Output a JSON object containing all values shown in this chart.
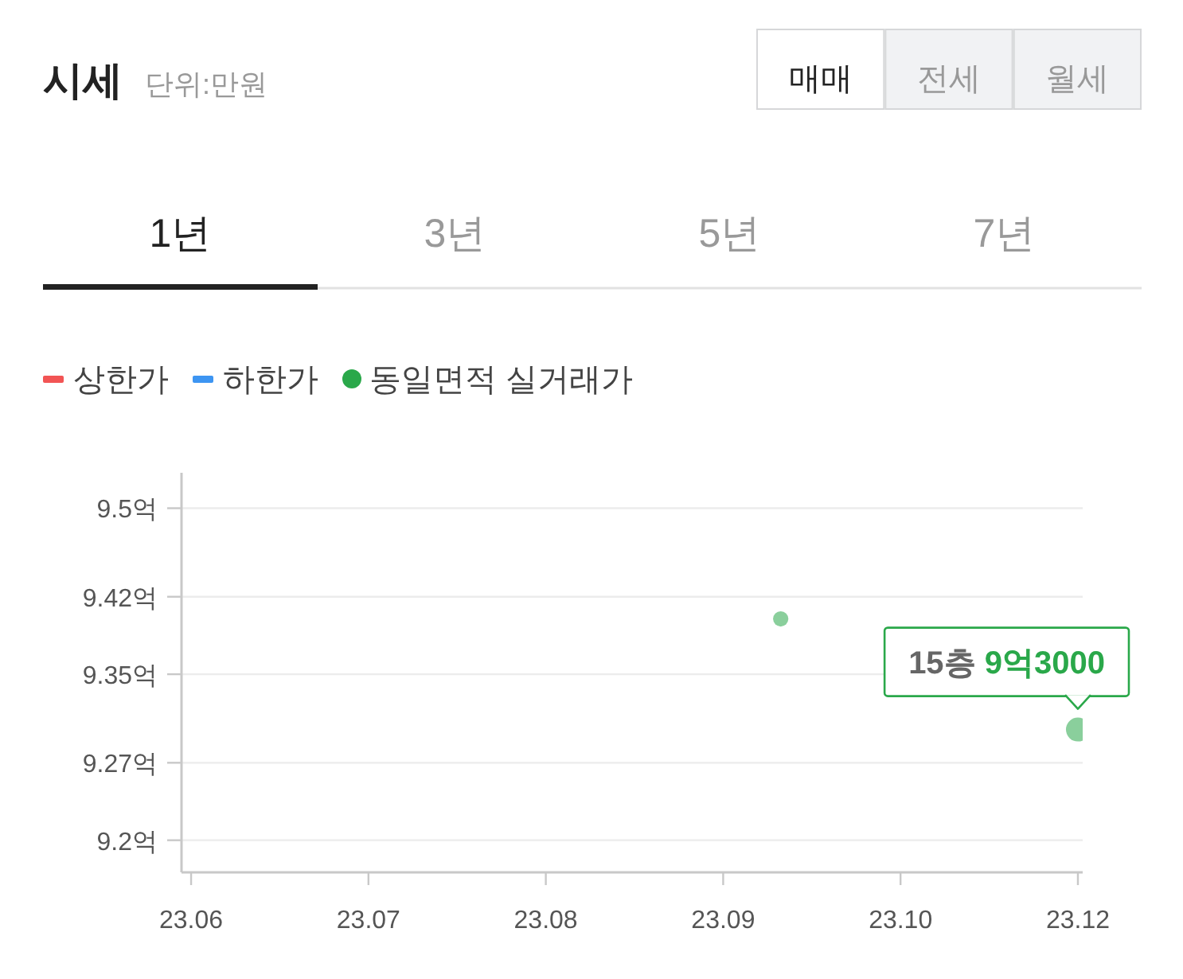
{
  "chart_data": {
    "type": "scatter",
    "title": "시세",
    "subtitle": "단위:만원",
    "annotations": [
      "매매",
      "전세",
      "월세",
      "1년",
      "3년",
      "5년",
      "7년",
      {
        "text": "15층 9억3000",
        "x": "--12-03",
        "y": 9.3
      }
    ],
    "x": [
      "--10-02",
      "--12-03"
    ],
    "series": [
      {
        "name": "상한가",
        "type": "line",
        "color": "#f25454",
        "values": [
          null,
          null
        ]
      },
      {
        "name": "하한가",
        "type": "line",
        "color": "#3d95f2",
        "values": [
          null,
          null
        ]
      },
      {
        "name": "동일면적 실거래가",
        "color": "#2aa84a",
        "values": [
          9.4,
          9.3
        ]
      }
    ],
    "xlim": [
      "--05-30",
      "--12-04"
    ],
    "xticks": [
      {
        "value": "--06-01",
        "label": "23.06"
      },
      {
        "value": "--07-08",
        "label": "23.07"
      },
      {
        "value": "--08-14",
        "label": "23.08"
      },
      {
        "value": "--09-20",
        "label": "23.09"
      },
      {
        "value": "--10-27",
        "label": "23.10"
      },
      {
        "value": "--12-03",
        "label": "23.12"
      }
    ],
    "ylim": [
      9.171,
      9.532
    ],
    "yticks": [
      {
        "value": 9.5,
        "label": "9.5억"
      },
      {
        "value": 9.42,
        "label": "9.42억"
      },
      {
        "value": 9.35,
        "label": "9.35억"
      },
      {
        "value": 9.27,
        "label": "9.27억"
      },
      {
        "value": 9.2,
        "label": "9.2억"
      }
    ],
    "grid": "y",
    "legend": "top left",
    "marker": "circle"
  }
}
